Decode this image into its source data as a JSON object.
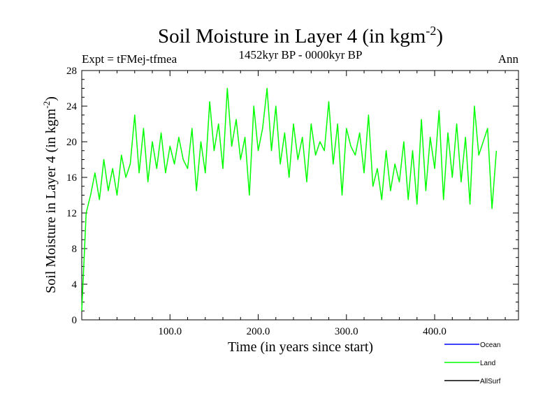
{
  "chart_data": {
    "type": "line",
    "title_main": "Soil Moisture in Layer 4 (in kgm",
    "title_sup": "-2",
    "title_close": ")",
    "subtitle": "1452kyr BP - 0000kyr BP",
    "left_label": "Expt = tFMej-tfmea",
    "right_label": "Ann",
    "xlabel": "Time (in years since start)",
    "ylabel_main": "Soil Moisture in Layer 4 (in kgm",
    "ylabel_sup": "-2",
    "ylabel_close": ")",
    "xlim": [
      0,
      495
    ],
    "ylim": [
      0,
      28
    ],
    "x_ticks": [
      100,
      200,
      300,
      400
    ],
    "x_tick_labels": [
      "100.0",
      "200.0",
      "300.0",
      "400.0"
    ],
    "y_ticks": [
      0,
      4,
      8,
      12,
      16,
      20,
      24,
      28
    ],
    "y_tick_labels": [
      "0",
      "4",
      "8",
      "12",
      "16",
      "20",
      "24",
      "28"
    ],
    "legend": [
      {
        "name": "Ocean",
        "color": "#0000ff"
      },
      {
        "name": "Land",
        "color": "#00ff00"
      },
      {
        "name": "AllSurf",
        "color": "#000000"
      }
    ],
    "series": [
      {
        "name": "Land",
        "color": "#00ff00",
        "x_start": 0,
        "x_step": 5,
        "values": [
          1.0,
          12.0,
          14.0,
          16.5,
          13.5,
          18.0,
          14.5,
          17.0,
          14.0,
          18.5,
          16.0,
          17.5,
          23.0,
          16.5,
          21.5,
          15.5,
          20.0,
          17.0,
          21.0,
          16.5,
          19.5,
          17.5,
          20.5,
          18.0,
          17.0,
          21.5,
          14.5,
          20.0,
          16.5,
          24.5,
          19.0,
          22.0,
          17.0,
          26.0,
          19.5,
          22.5,
          18.0,
          20.5,
          14.0,
          24.0,
          19.0,
          21.5,
          26.0,
          19.0,
          24.0,
          17.5,
          21.0,
          16.0,
          22.0,
          18.0,
          20.5,
          15.5,
          22.0,
          18.5,
          20.0,
          19.0,
          24.5,
          17.5,
          22.0,
          14.0,
          21.5,
          19.5,
          18.5,
          21.0,
          16.5,
          23.0,
          15.0,
          17.0,
          13.5,
          19.0,
          14.5,
          17.5,
          15.5,
          20.0,
          13.5,
          19.0,
          13.0,
          22.5,
          14.5,
          20.5,
          17.0,
          23.5,
          13.5,
          21.0,
          16.0,
          22.0,
          15.5,
          20.5,
          13.0,
          24.0,
          18.5,
          20.0,
          21.5,
          12.5,
          19.0
        ]
      }
    ]
  }
}
